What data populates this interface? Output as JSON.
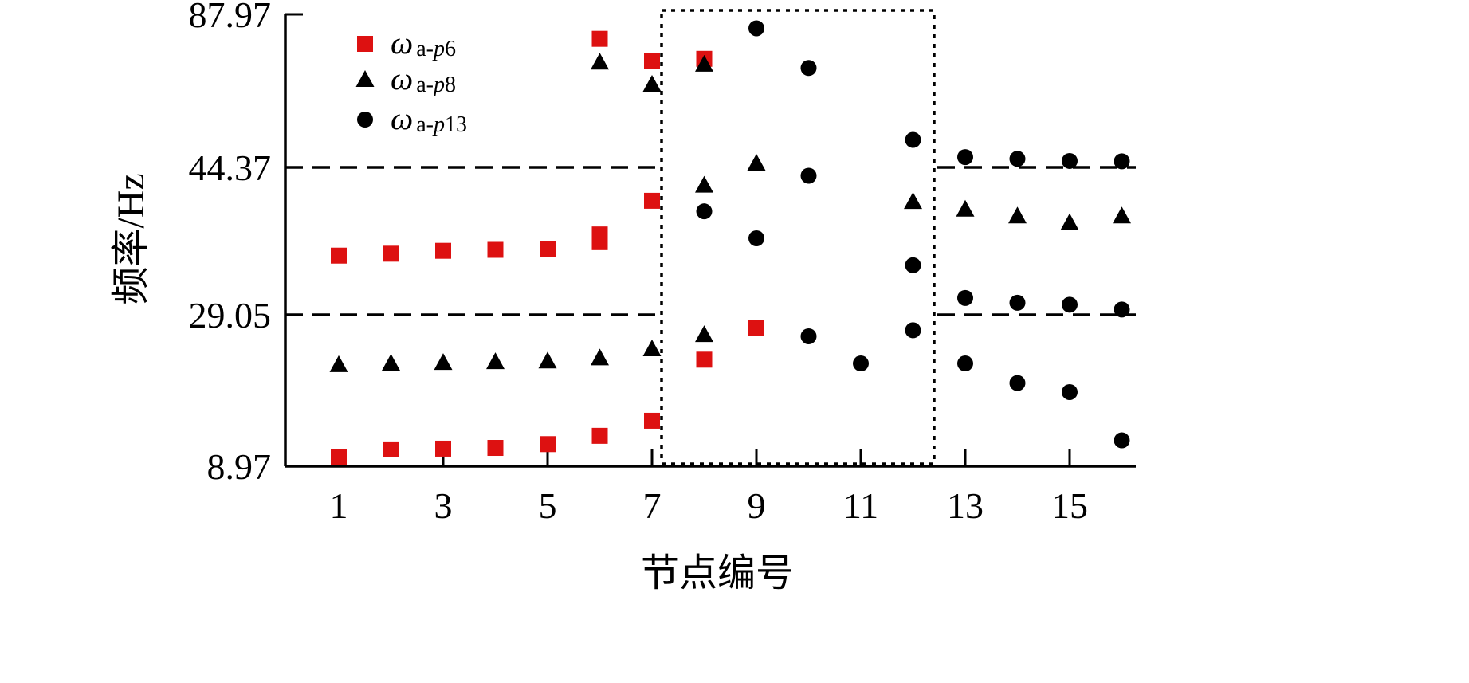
{
  "chart_data": {
    "type": "scatter",
    "xlabel": "节点编号",
    "ylabel": "频率/Hz",
    "x_ticks": [
      "1",
      "3",
      "5",
      "7",
      "9",
      "11",
      "13",
      "15"
    ],
    "y_ticks": [
      "8.97",
      "29.05",
      "44.37",
      "87.97"
    ],
    "y_scale": "piecewise-linear",
    "xlim": [
      0.5,
      16.5
    ],
    "reference_lines_y": [
      29.05,
      44.37
    ],
    "highlight_region_x": [
      7.2,
      12.4
    ],
    "legend_position": "top-left",
    "series": [
      {
        "name": "ωa-p6",
        "legend_symbol": "ω",
        "legend_subscript_prefix": "a-",
        "legend_subscript_italic": "p",
        "legend_subscript_suffix": "6",
        "marker": "square",
        "color": "#dd1111",
        "points": [
          {
            "x": 1,
            "y": 10.2
          },
          {
            "x": 2,
            "y": 11.2
          },
          {
            "x": 3,
            "y": 11.3
          },
          {
            "x": 4,
            "y": 11.4
          },
          {
            "x": 5,
            "y": 11.9
          },
          {
            "x": 6,
            "y": 13.0
          },
          {
            "x": 7,
            "y": 15.0
          },
          {
            "x": 8,
            "y": 23.1
          },
          {
            "x": 9,
            "y": 27.3
          },
          {
            "x": 6,
            "y": 37.4
          },
          {
            "x": 7,
            "y": 40.9
          },
          {
            "x": 1,
            "y": 35.2
          },
          {
            "x": 2,
            "y": 35.4
          },
          {
            "x": 3,
            "y": 35.7
          },
          {
            "x": 4,
            "y": 35.8
          },
          {
            "x": 5,
            "y": 35.9
          },
          {
            "x": 6,
            "y": 36.6
          },
          {
            "x": 6,
            "y": 81.0
          },
          {
            "x": 7,
            "y": 74.8
          },
          {
            "x": 8,
            "y": 75.3
          }
        ]
      },
      {
        "name": "ωa-p8",
        "legend_symbol": "ω",
        "legend_subscript_prefix": "a-",
        "legend_subscript_italic": "p",
        "legend_subscript_suffix": "8",
        "marker": "triangle",
        "color": "#000000",
        "points": [
          {
            "x": 1,
            "y": 22.4
          },
          {
            "x": 2,
            "y": 22.6
          },
          {
            "x": 3,
            "y": 22.7
          },
          {
            "x": 4,
            "y": 22.8
          },
          {
            "x": 5,
            "y": 22.9
          },
          {
            "x": 6,
            "y": 23.3
          },
          {
            "x": 7,
            "y": 24.5
          },
          {
            "x": 8,
            "y": 26.4
          },
          {
            "x": 6,
            "y": 74.3
          },
          {
            "x": 7,
            "y": 68.0
          },
          {
            "x": 8,
            "y": 73.7
          },
          {
            "x": 9,
            "y": 45.5
          },
          {
            "x": 8,
            "y": 42.5
          },
          {
            "x": 12,
            "y": 40.8
          },
          {
            "x": 13,
            "y": 40.0
          },
          {
            "x": 14,
            "y": 39.3
          },
          {
            "x": 15,
            "y": 38.6
          },
          {
            "x": 16,
            "y": 39.3
          }
        ]
      },
      {
        "name": "ωa-p13",
        "legend_symbol": "ω",
        "legend_subscript_prefix": "a-",
        "legend_subscript_italic": "p",
        "legend_subscript_suffix": "13",
        "marker": "circle",
        "color": "#000000",
        "points": [
          {
            "x": 9,
            "y": 84.0
          },
          {
            "x": 10,
            "y": 72.7
          },
          {
            "x": 12,
            "y": 52.2
          },
          {
            "x": 13,
            "y": 47.3
          },
          {
            "x": 14,
            "y": 46.8
          },
          {
            "x": 15,
            "y": 46.2
          },
          {
            "x": 16,
            "y": 46.1
          },
          {
            "x": 10,
            "y": 43.5
          },
          {
            "x": 8,
            "y": 39.8
          },
          {
            "x": 9,
            "y": 37.0
          },
          {
            "x": 12,
            "y": 34.2
          },
          {
            "x": 13,
            "y": 30.8
          },
          {
            "x": 14,
            "y": 30.3
          },
          {
            "x": 15,
            "y": 30.1
          },
          {
            "x": 16,
            "y": 29.6
          },
          {
            "x": 12,
            "y": 27.0
          },
          {
            "x": 10,
            "y": 26.2
          },
          {
            "x": 11,
            "y": 22.6
          },
          {
            "x": 13,
            "y": 22.6
          },
          {
            "x": 14,
            "y": 20.0
          },
          {
            "x": 15,
            "y": 18.8
          },
          {
            "x": 16,
            "y": 12.4
          }
        ]
      }
    ]
  }
}
